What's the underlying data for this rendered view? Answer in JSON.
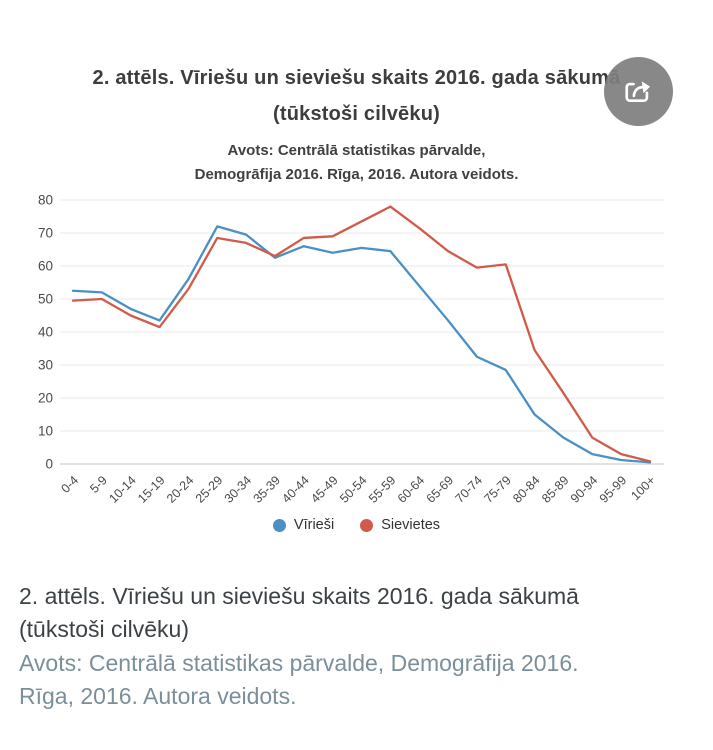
{
  "figure": {
    "share_icon": "share-export-icon"
  },
  "chart_data": {
    "type": "line",
    "title": "2. attēls. Vīriešu un sieviešu skaits 2016. gada sākumā\n(tūkstoši cilvēku)",
    "subtitle": "Avots: Centrālā statistikas pārvalde,\nDemogrāfija 2016. Rīga, 2016. Autora veidots.",
    "categories": [
      "0-4",
      "5-9",
      "10-14",
      "15-19",
      "20-24",
      "25-29",
      "30-34",
      "35-39",
      "40-44",
      "45-49",
      "50-54",
      "55-59",
      "60-64",
      "65-69",
      "70-74",
      "75-79",
      "80-84",
      "85-89",
      "90-94",
      "95-99",
      "100+"
    ],
    "series": [
      {
        "name": "Vīrieši",
        "color": "#4A90C4",
        "values": [
          52.5,
          52,
          47,
          43.5,
          56,
          72,
          69.5,
          62.5,
          66,
          64,
          65.5,
          64.5,
          54,
          43.5,
          32.5,
          28.5,
          15,
          8,
          3,
          1.2,
          0.5
        ]
      },
      {
        "name": "Sievietes",
        "color": "#D15B4A",
        "values": [
          49.5,
          50,
          45,
          41.5,
          53,
          68.5,
          67,
          63,
          68.5,
          69,
          73.5,
          78,
          71.5,
          64.5,
          59.5,
          60.5,
          34.5,
          21.5,
          8,
          3,
          0.8
        ]
      }
    ],
    "xlabel": "",
    "ylabel": "",
    "ylim": [
      0,
      80
    ],
    "yticks": [
      0,
      10,
      20,
      30,
      40,
      50,
      60,
      70,
      80
    ],
    "grid": true,
    "x_tick_rotation": -45,
    "legend_position": "bottom"
  },
  "caption": {
    "title": "2. attēls. Vīriešu un sieviešu skaits 2016. gada sākumā\n(tūkstoši cilvēku)",
    "source": "Avots: Centrālā statistikas pārvalde, Demogrāfija 2016.\nRīga, 2016. Autora veidots."
  },
  "colors": {
    "grid_line": "#e9e9e9",
    "axis_line": "#c6c6c6",
    "tick_label": "#4a4a4a",
    "title_text": "#3d3d3d",
    "caption_title_text": "#3b4245",
    "caption_source_text": "#7b8e9a",
    "share_button_bg": "#7e7e7e"
  }
}
